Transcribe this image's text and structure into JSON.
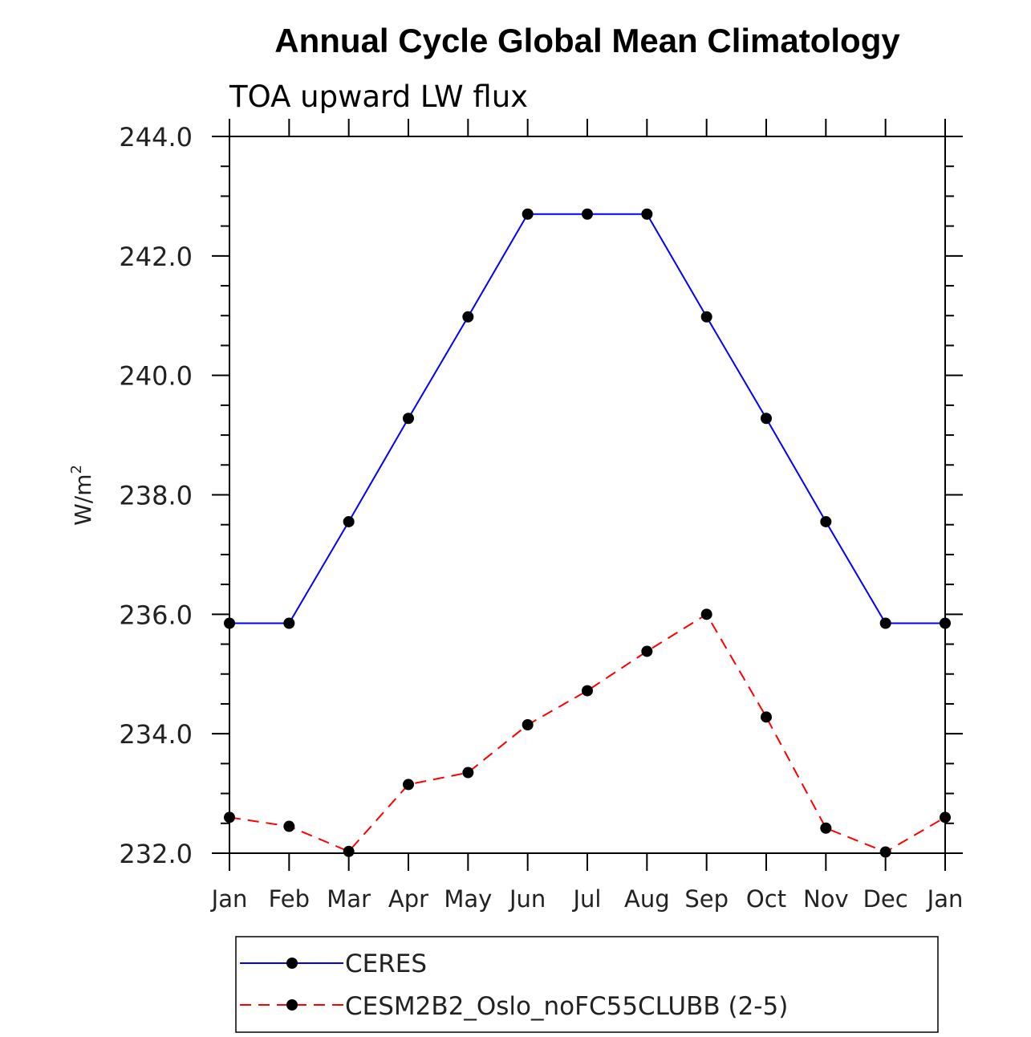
{
  "chart_data": {
    "type": "line",
    "title": "Annual Cycle Global Mean Climatology",
    "subtitle": "TOA upward LW flux",
    "ylabel_base": "W/m",
    "ylabel_sup": "2",
    "ylim": [
      232.0,
      244.0
    ],
    "yticks": [
      "232.0",
      "234.0",
      "236.0",
      "238.0",
      "240.0",
      "242.0",
      "244.0"
    ],
    "categories": [
      "Jan",
      "Feb",
      "Mar",
      "Apr",
      "May",
      "Jun",
      "Jul",
      "Aug",
      "Sep",
      "Oct",
      "Nov",
      "Dec",
      "Jan"
    ],
    "series": [
      {
        "name": "CERES",
        "color": "#0000ff",
        "dash": "solid",
        "values": [
          235.85,
          235.85,
          237.55,
          239.28,
          240.98,
          242.7,
          242.7,
          242.7,
          240.98,
          239.28,
          237.55,
          235.85,
          235.85
        ]
      },
      {
        "name": "CESM2B2_Oslo_noFC55CLUBB (2-5)",
        "color": "#ff0000",
        "dash": "dashed",
        "values": [
          232.6,
          232.45,
          232.03,
          233.15,
          233.35,
          234.15,
          234.72,
          235.38,
          236.0,
          234.28,
          232.42,
          232.02,
          232.6
        ]
      }
    ],
    "legend_position": "bottom"
  }
}
